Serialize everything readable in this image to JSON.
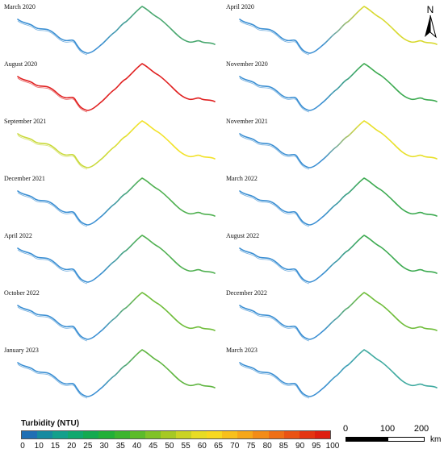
{
  "panels": [
    {
      "label": "March 2020",
      "base": "#3b8fd3",
      "accent": "#4aa870"
    },
    {
      "label": "April 2020",
      "base": "#3b8fd3",
      "accent": "#d8d930"
    },
    {
      "label": "August 2020",
      "base": "#e02020",
      "accent": "#e02020"
    },
    {
      "label": "November 2020",
      "base": "#3b8fd3",
      "accent": "#3caa50"
    },
    {
      "label": "September 2021",
      "base": "#c9d93a",
      "accent": "#f2e22a"
    },
    {
      "label": "November 2021",
      "base": "#3b8fd3",
      "accent": "#e8e02a"
    },
    {
      "label": "December 2021",
      "base": "#3b8fd3",
      "accent": "#4fb050"
    },
    {
      "label": "March 2022",
      "base": "#3b8fd3",
      "accent": "#3caa50"
    },
    {
      "label": "April 2022",
      "base": "#3b8fd3",
      "accent": "#4fb050"
    },
    {
      "label": "August 2022",
      "base": "#3b8fd3",
      "accent": "#3caa50"
    },
    {
      "label": "October 2022",
      "base": "#3b8fd3",
      "accent": "#6fbd3a"
    },
    {
      "label": "December 2022",
      "base": "#3b8fd3",
      "accent": "#6fbd3a"
    },
    {
      "label": "January 2023",
      "base": "#3b8fd3",
      "accent": "#5fb540"
    },
    {
      "label": "March 2023",
      "base": "#3b8fd3",
      "accent": "#3faaa0"
    }
  ],
  "legend": {
    "title": "Turbidity (NTU)",
    "ticks": [
      "0",
      "10",
      "15",
      "20",
      "25",
      "30",
      "35",
      "40",
      "45",
      "50",
      "55",
      "60",
      "65",
      "70",
      "75",
      "80",
      "85",
      "90",
      "95",
      "100"
    ],
    "colors": [
      "#1f6fb4",
      "#168aa0",
      "#13a08c",
      "#10a86e",
      "#14aa50",
      "#22b038",
      "#3cb52e",
      "#5cbb2a",
      "#80c226",
      "#a6c924",
      "#cad324",
      "#e8dc24",
      "#f8d820",
      "#f8c01c",
      "#f6a71a",
      "#f38c18",
      "#ef6f16",
      "#ea5314",
      "#e43512",
      "#de1f10"
    ]
  },
  "scale": {
    "labels": [
      "0",
      "100",
      "200"
    ],
    "unit": "km"
  },
  "north": "N"
}
